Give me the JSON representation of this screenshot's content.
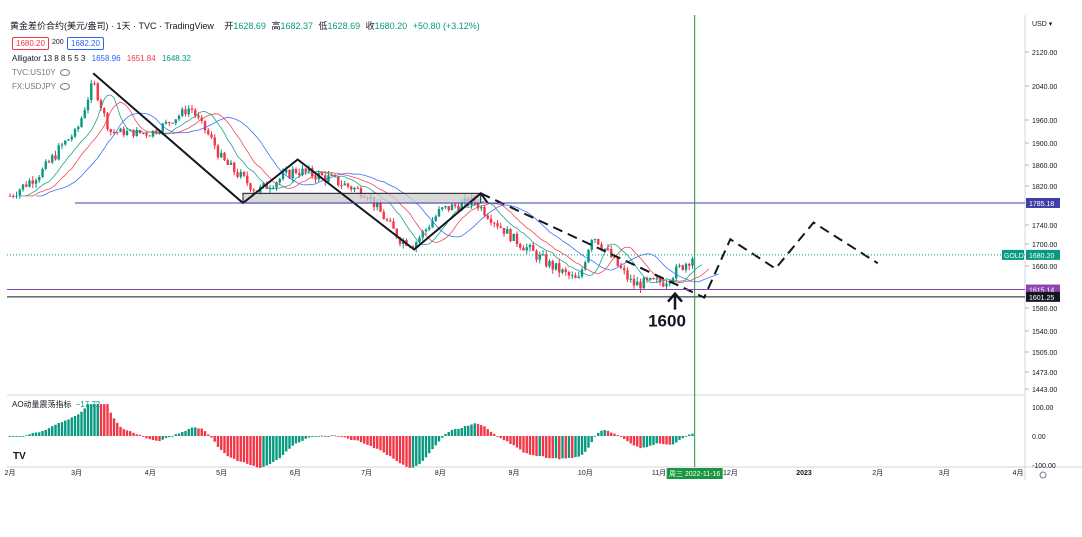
{
  "header": {
    "title": "黄金差价合约(美元/盎司) · 1天 · TVC · TradingView",
    "ohlc": [
      {
        "label": "开",
        "value": "1628.69"
      },
      {
        "label": "高",
        "value": "1682.37"
      },
      {
        "label": "低",
        "value": "1628.69"
      },
      {
        "label": "收",
        "value": "1680.20"
      }
    ],
    "change": "+50.80 (+3.12%)"
  },
  "bid": "1680.20",
  "spread": "200",
  "ask": "1682.20",
  "indicators": {
    "alligator": {
      "label": "Alligator 13 8 8 5 5 3",
      "values": [
        "1658.96",
        "1651.84",
        "1648.32"
      ]
    },
    "tvc": "TVC:US10Y",
    "fx": "FX:USDJPY"
  },
  "ao": {
    "label": "AO动量震荡指标",
    "value": "−17.72"
  },
  "currency": "USD",
  "logo": "TV",
  "colors": {
    "up": "#089981",
    "down": "#f23645",
    "jaw": "#2962ff",
    "teeth": "#f23645",
    "lips": "#089981",
    "hline": "#3f3fa8",
    "vline": "#1a9641"
  },
  "chart_data": {
    "type": "candlestick",
    "symbol": "GOLD",
    "ylim": [
      1425,
      2180
    ],
    "price_ticks": [
      "2120.00",
      "2040.00",
      "1960.00",
      "1900.00",
      "1860.00",
      "1820.00",
      "1740.00",
      "1700.00",
      "1660.00",
      "1580.00",
      "1540.00",
      "1505.00",
      "1473.00",
      "1443.00"
    ],
    "x_labels": [
      "2月",
      "3月",
      "4月",
      "5月",
      "6月",
      "7月",
      "8月",
      "9月",
      "10月",
      "11月",
      "12月",
      "2023",
      "2月",
      "3月",
      "4月"
    ],
    "x_label_dates": [
      "2022-02-01",
      "2022-03-01",
      "2022-04-01",
      "2022-05-01",
      "2022-06-01",
      "2022-07-01",
      "2022-08-01",
      "2022-09-01",
      "2022-10-01",
      "2022-11-01",
      "2022-12-01",
      "2023-01-01",
      "2023-02-01",
      "2023-03-01",
      "2023-04-01"
    ],
    "close_path": [
      [
        "2022-02-01",
        1800
      ],
      [
        "2022-02-15",
        1850
      ],
      [
        "2022-03-01",
        1930
      ],
      [
        "2022-03-08",
        2050
      ],
      [
        "2022-03-15",
        1930
      ],
      [
        "2022-04-01",
        1925
      ],
      [
        "2022-04-18",
        1990
      ],
      [
        "2022-05-01",
        1870
      ],
      [
        "2022-05-16",
        1810
      ],
      [
        "2022-06-01",
        1850
      ],
      [
        "2022-06-15",
        1835
      ],
      [
        "2022-07-01",
        1805
      ],
      [
        "2022-07-15",
        1710
      ],
      [
        "2022-07-21",
        1700
      ],
      [
        "2022-08-01",
        1770
      ],
      [
        "2022-08-15",
        1790
      ],
      [
        "2022-09-01",
        1710
      ],
      [
        "2022-09-15",
        1665
      ],
      [
        "2022-09-28",
        1630
      ],
      [
        "2022-10-04",
        1720
      ],
      [
        "2022-10-21",
        1625
      ],
      [
        "2022-11-03",
        1630
      ],
      [
        "2022-11-16",
        1680.2
      ]
    ],
    "horizontal_levels": [
      {
        "price": 1785.18,
        "label": "1785.18",
        "color": "#3f3fa8"
      },
      {
        "price": 1615.14,
        "label": "1615.14",
        "color": "#8e44ad"
      },
      {
        "price": 1601.25,
        "label": "1601.25",
        "color": "#131722"
      }
    ],
    "last_price": {
      "label": "GOLD",
      "value": "1680.20",
      "price": 1680.2
    },
    "annotation": "1600",
    "cursor_date_label": "周三 2022-11-16",
    "cursor_date": "2022-11-16",
    "zigzag_solid": [
      [
        "2022-03-08",
        2070
      ],
      [
        "2022-05-10",
        1785
      ],
      [
        "2022-06-02",
        1870
      ],
      [
        "2022-07-21",
        1690
      ],
      [
        "2022-08-18",
        1805
      ],
      [
        "2022-08-21",
        1785
      ]
    ],
    "zigzag_dashed": [
      [
        "2022-08-18",
        1805
      ],
      [
        "2022-11-20",
        1600
      ],
      [
        "2022-12-01",
        1710
      ],
      [
        "2022-12-20",
        1655
      ],
      [
        "2023-01-05",
        1745
      ],
      [
        "2023-02-01",
        1665
      ]
    ],
    "rectangle": {
      "from": "2022-05-10",
      "to": "2022-08-18",
      "top": 1805,
      "bottom": 1785
    },
    "ao": {
      "ylim": [
        -120,
        120
      ],
      "ticks": [
        "100.00",
        "0.00",
        "-100.00"
      ]
    }
  }
}
